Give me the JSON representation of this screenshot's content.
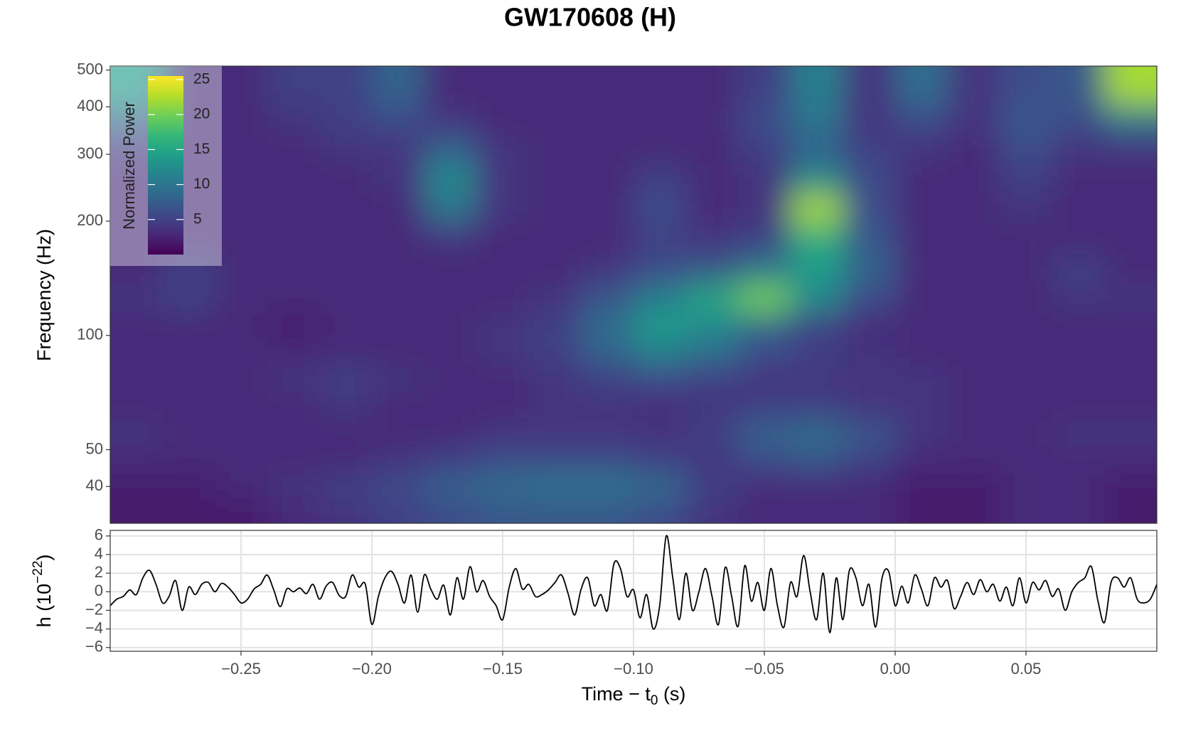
{
  "title": "GW170608 (H)",
  "chart_data": [
    {
      "type": "heatmap",
      "ylabel": "Frequency (Hz)",
      "log_y": true,
      "xlim": [
        -0.3,
        0.1
      ],
      "ylim": [
        32,
        512
      ],
      "yticks": [
        40,
        50,
        100,
        200,
        300,
        400,
        500
      ],
      "x": [
        -0.29,
        -0.27,
        -0.25,
        -0.23,
        -0.21,
        -0.19,
        -0.17,
        -0.15,
        -0.13,
        -0.11,
        -0.09,
        -0.07,
        -0.05,
        -0.03,
        -0.01,
        0.01,
        0.03,
        0.05,
        0.07,
        0.09
      ],
      "y": [
        35,
        40,
        47,
        55,
        65,
        77,
        90,
        105,
        125,
        150,
        180,
        215,
        260,
        310,
        370,
        440
      ],
      "values": [
        [
          2,
          2,
          2,
          3,
          4,
          5,
          6,
          7,
          7,
          7,
          6,
          4,
          3,
          3,
          3,
          2,
          2,
          3,
          3,
          2
        ],
        [
          2,
          2,
          3,
          4,
          5,
          6,
          8,
          9,
          10,
          10,
          9,
          5,
          3,
          3,
          3,
          2,
          2,
          3,
          3,
          2
        ],
        [
          3,
          3,
          3,
          3,
          3,
          4,
          5,
          6,
          6,
          6,
          5,
          4,
          6,
          7,
          5,
          3,
          3,
          3,
          3,
          3
        ],
        [
          4,
          3,
          3,
          3,
          3,
          3,
          3,
          4,
          4,
          4,
          4,
          5,
          8,
          9,
          7,
          4,
          3,
          3,
          4,
          4
        ],
        [
          3,
          3,
          3,
          3,
          4,
          3,
          3,
          3,
          4,
          4,
          3,
          4,
          5,
          5,
          4,
          4,
          3,
          3,
          3,
          3
        ],
        [
          3,
          3,
          3,
          4,
          5,
          4,
          3,
          3,
          4,
          5,
          6,
          5,
          4,
          4,
          4,
          4,
          3,
          3,
          3,
          3
        ],
        [
          3,
          3,
          3,
          3,
          3,
          3,
          3,
          4,
          5,
          8,
          11,
          9,
          6,
          5,
          4,
          3,
          3,
          3,
          3,
          3
        ],
        [
          3,
          3,
          3,
          2,
          3,
          3,
          3,
          4,
          5,
          9,
          14,
          12,
          8,
          5,
          3,
          3,
          3,
          3,
          3,
          3
        ],
        [
          4,
          5,
          3,
          3,
          3,
          3,
          3,
          3,
          4,
          7,
          11,
          15,
          20,
          12,
          6,
          3,
          3,
          3,
          4,
          4
        ],
        [
          3,
          5,
          3,
          3,
          3,
          3,
          3,
          3,
          3,
          4,
          6,
          7,
          10,
          14,
          8,
          3,
          3,
          3,
          5,
          3
        ],
        [
          3,
          3,
          3,
          3,
          3,
          3,
          4,
          3,
          3,
          3,
          5,
          4,
          5,
          16,
          7,
          3,
          3,
          3,
          3,
          3
        ],
        [
          3,
          3,
          3,
          3,
          3,
          3,
          10,
          4,
          3,
          3,
          6,
          3,
          4,
          22,
          6,
          3,
          3,
          4,
          3,
          3
        ],
        [
          3,
          3,
          3,
          3,
          3,
          4,
          12,
          4,
          3,
          3,
          5,
          3,
          4,
          12,
          6,
          3,
          3,
          5,
          3,
          3
        ],
        [
          4,
          3,
          3,
          3,
          4,
          4,
          8,
          4,
          3,
          3,
          3,
          3,
          5,
          8,
          5,
          4,
          3,
          6,
          4,
          4
        ],
        [
          8,
          3,
          3,
          4,
          5,
          6,
          4,
          3,
          3,
          3,
          3,
          3,
          6,
          10,
          4,
          6,
          4,
          7,
          6,
          10
        ],
        [
          14,
          3,
          3,
          5,
          5,
          8,
          3,
          3,
          3,
          3,
          3,
          3,
          5,
          11,
          4,
          9,
          4,
          6,
          7,
          22
        ]
      ],
      "colorbar": {
        "title": "Normalized Power",
        "colormap": "viridis",
        "lim": [
          0,
          25.5
        ],
        "ticks": [
          5,
          10,
          15,
          20,
          25
        ]
      }
    },
    {
      "type": "line",
      "color": "#000000",
      "grid": true,
      "ylabel": {
        "text": "h (10",
        "sup": "−22",
        "end": ")"
      },
      "xlabel": {
        "text": "Time − t",
        "sub": "0",
        "end": " (s)"
      },
      "xlim": [
        -0.3,
        0.1
      ],
      "ylim": [
        -6.4,
        6.6
      ],
      "xticks": [
        {
          "value": -0.25,
          "label": "−0.25"
        },
        {
          "value": -0.2,
          "label": "−0.20"
        },
        {
          "value": -0.15,
          "label": "−0.15"
        },
        {
          "value": -0.1,
          "label": "−0.10"
        },
        {
          "value": -0.05,
          "label": "−0.05"
        },
        {
          "value": 0,
          "label": "0.00"
        },
        {
          "value": 0.05,
          "label": "0.05"
        }
      ],
      "yticks": [
        {
          "value": -6,
          "label": "−6"
        },
        {
          "value": -4,
          "label": "−4"
        },
        {
          "value": -2,
          "label": "−2"
        },
        0,
        2,
        4,
        6
      ],
      "x": [
        -0.3,
        -0.2975,
        -0.295,
        -0.2925,
        -0.29,
        -0.2875,
        -0.285,
        -0.2825,
        -0.28,
        -0.2775,
        -0.275,
        -0.2725,
        -0.27,
        -0.2675,
        -0.265,
        -0.2625,
        -0.26,
        -0.2575,
        -0.255,
        -0.2525,
        -0.25,
        -0.2475,
        -0.245,
        -0.2425,
        -0.24,
        -0.2375,
        -0.235,
        -0.2325,
        -0.23,
        -0.2275,
        -0.225,
        -0.2225,
        -0.22,
        -0.2175,
        -0.215,
        -0.2125,
        -0.21,
        -0.2075,
        -0.205,
        -0.2025,
        -0.2,
        -0.1975,
        -0.195,
        -0.1925,
        -0.19,
        -0.1875,
        -0.185,
        -0.1825,
        -0.18,
        -0.1775,
        -0.175,
        -0.1725,
        -0.17,
        -0.1675,
        -0.165,
        -0.1625,
        -0.16,
        -0.1575,
        -0.155,
        -0.1525,
        -0.15,
        -0.1475,
        -0.145,
        -0.1425,
        -0.14,
        -0.1375,
        -0.135,
        -0.1325,
        -0.13,
        -0.1275,
        -0.125,
        -0.1225,
        -0.12,
        -0.1175,
        -0.115,
        -0.1125,
        -0.11,
        -0.1075,
        -0.105,
        -0.1025,
        -0.1,
        -0.0975,
        -0.095,
        -0.0925,
        -0.09,
        -0.0875,
        -0.085,
        -0.0825,
        -0.08,
        -0.0775,
        -0.075,
        -0.0725,
        -0.07,
        -0.0675,
        -0.065,
        -0.0625,
        -0.06,
        -0.0575,
        -0.055,
        -0.0525,
        -0.05,
        -0.0475,
        -0.045,
        -0.0425,
        -0.04,
        -0.0375,
        -0.035,
        -0.0325,
        -0.03,
        -0.0275,
        -0.025,
        -0.0225,
        -0.02,
        -0.0175,
        -0.015,
        -0.0125,
        -0.01,
        -0.0075,
        -0.005,
        -0.0025,
        0,
        0.0025,
        0.005,
        0.0075,
        0.01,
        0.0125,
        0.015,
        0.0175,
        0.02,
        0.0225,
        0.025,
        0.0275,
        0.03,
        0.0325,
        0.035,
        0.0375,
        0.04,
        0.0425,
        0.045,
        0.0475,
        0.05,
        0.0525,
        0.055,
        0.0575,
        0.06,
        0.0625,
        0.065,
        0.0675,
        0.07,
        0.0725,
        0.075,
        0.0775,
        0.08,
        0.0825,
        0.085,
        0.0875,
        0.09,
        0.0925,
        0.095,
        0.0975,
        0.1
      ],
      "values": [
        -1.5,
        -0.8,
        -0.5,
        0.2,
        -0.3,
        1.5,
        2.3,
        0.8,
        -1.2,
        -0.5,
        1.2,
        -2.0,
        0.5,
        -0.3,
        0.8,
        1.0,
        0.0,
        0.9,
        0.5,
        -0.3,
        -1.2,
        -0.8,
        0.3,
        0.8,
        1.8,
        0.2,
        -1.6,
        0.3,
        0.0,
        0.4,
        -0.2,
        0.8,
        -0.8,
        0.6,
        1.0,
        -0.4,
        -0.5,
        1.8,
        0.5,
        0.8,
        -3.5,
        -0.5,
        1.5,
        2.2,
        0.8,
        -1.2,
        1.8,
        -2.2,
        1.8,
        0.3,
        -0.8,
        0.7,
        -2.5,
        1.5,
        -0.8,
        2.7,
        0.0,
        1.2,
        -0.5,
        -1.5,
        -3.0,
        0.5,
        2.5,
        0.3,
        0.8,
        -0.5,
        -0.3,
        0.2,
        1.0,
        1.8,
        -0.2,
        -2.5,
        0.3,
        1.5,
        -1.5,
        -0.3,
        -2.0,
        3.0,
        2.5,
        -0.5,
        0.2,
        -2.8,
        -0.3,
        -4.0,
        -1.5,
        6.0,
        1.5,
        -3.0,
        2.0,
        -2.0,
        0.0,
        2.5,
        -0.5,
        -3.5,
        2.6,
        -0.5,
        -3.7,
        2.8,
        -1.0,
        1.0,
        -2.0,
        2.5,
        -1.5,
        -3.8,
        1.0,
        -0.5,
        3.9,
        0.0,
        -3.0,
        2.0,
        -4.4,
        1.5,
        -3.0,
        2.3,
        1.5,
        -1.5,
        0.8,
        -3.8,
        1.5,
        2.2,
        -1.5,
        0.6,
        -1.2,
        1.8,
        0.3,
        -1.5,
        1.5,
        0.5,
        1.2,
        -1.8,
        -0.5,
        1.0,
        -0.3,
        1.3,
        0.0,
        0.8,
        -1.0,
        0.5,
        -1.5,
        1.5,
        -1.2,
        1.0,
        0.2,
        1.2,
        -0.5,
        0.3,
        -2.0,
        0.0,
        1.0,
        1.5,
        2.7,
        -1.0,
        -3.3,
        1.0,
        1.5,
        0.5,
        1.5,
        -0.8,
        -1.2,
        -0.8,
        0.8
      ]
    }
  ]
}
